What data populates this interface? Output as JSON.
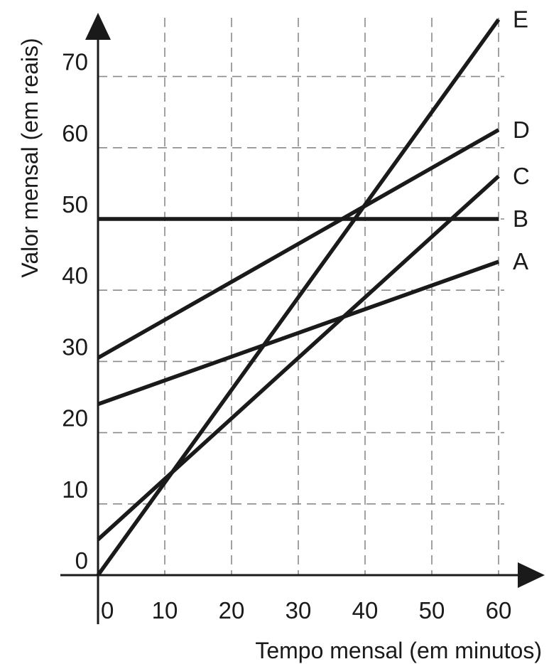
{
  "chart_data": {
    "type": "line",
    "title": "",
    "xlabel": "Tempo mensal (em minutos)",
    "ylabel": "Valor mensal (em reais)",
    "xlim": [
      0,
      60
    ],
    "ylim": [
      0,
      70
    ],
    "x_ticks": [
      0,
      10,
      20,
      30,
      40,
      50,
      60
    ],
    "y_ticks": [
      0,
      10,
      20,
      30,
      40,
      50,
      60,
      70
    ],
    "x_tick_labels": [
      "0",
      "10",
      "20",
      "30",
      "40",
      "50",
      "60"
    ],
    "y_tick_labels": [
      "0",
      "10",
      "20",
      "30",
      "40",
      "50",
      "60",
      "70"
    ],
    "grid": true,
    "grid_style": "dashed",
    "series": [
      {
        "name": "A",
        "x": [
          0,
          60
        ],
        "y": [
          24,
          44
        ]
      },
      {
        "name": "B",
        "x": [
          0,
          60
        ],
        "y": [
          50,
          50
        ]
      },
      {
        "name": "C",
        "x": [
          0,
          60
        ],
        "y": [
          5,
          56
        ]
      },
      {
        "name": "D",
        "x": [
          0,
          60
        ],
        "y": [
          30.5,
          62.5
        ]
      },
      {
        "name": "E",
        "x": [
          0,
          60
        ],
        "y": [
          0,
          78
        ]
      }
    ]
  }
}
